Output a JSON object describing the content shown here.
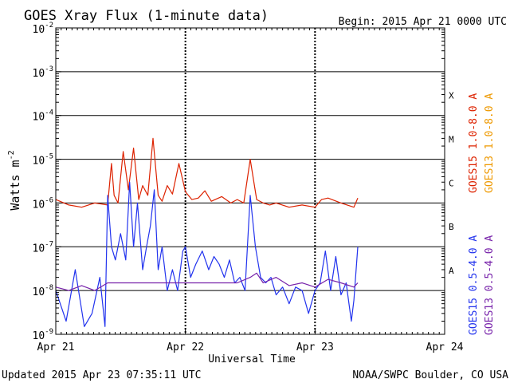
{
  "chart_data": {
    "type": "line",
    "title": "GOES Xray Flux (1-minute data)",
    "begin_label": "Begin:  2015 Apr 21 0000 UTC",
    "xlabel": "Universal Time",
    "ylabel": "Watts m",
    "ylabel_superscript": "-2",
    "x_ticks": [
      "Apr 21",
      "Apr 22",
      "Apr 23",
      "Apr 24"
    ],
    "y_scale": "log",
    "ylim": [
      1e-09,
      0.01
    ],
    "y_ticks": [
      {
        "base": "10",
        "exp": "-9",
        "value": 1e-09
      },
      {
        "base": "10",
        "exp": "-8",
        "value": 1e-08
      },
      {
        "base": "10",
        "exp": "-7",
        "value": 1e-07
      },
      {
        "base": "10",
        "exp": "-6",
        "value": 1e-06
      },
      {
        "base": "10",
        "exp": "-5",
        "value": 1e-05
      },
      {
        "base": "10",
        "exp": "-4",
        "value": 0.0001
      },
      {
        "base": "10",
        "exp": "-3",
        "value": 0.001
      },
      {
        "base": "10",
        "exp": "-2",
        "value": 0.01
      }
    ],
    "flare_classes": [
      {
        "label": "A",
        "value": 3e-08
      },
      {
        "label": "B",
        "value": 3e-07
      },
      {
        "label": "C",
        "value": 3e-06
      },
      {
        "label": "M",
        "value": 3e-05
      },
      {
        "label": "X",
        "value": 0.0003
      }
    ],
    "legend": [
      {
        "label": "GOES15 1.0-8.0 A",
        "color": "#dd2200"
      },
      {
        "label": "GOES13 1.0-8.0 A",
        "color": "#ee9900"
      },
      {
        "label": "GOES15 0.5-4.0 A",
        "color": "#2233ee"
      },
      {
        "label": "GOES13 0.5-4.0 A",
        "color": "#7722aa"
      }
    ],
    "series": [
      {
        "name": "GOES15 1.0-8.0 A",
        "color": "#dd2200",
        "x_days": [
          0.0,
          0.1,
          0.2,
          0.3,
          0.4,
          0.43,
          0.45,
          0.48,
          0.52,
          0.56,
          0.6,
          0.64,
          0.67,
          0.71,
          0.75,
          0.79,
          0.82,
          0.86,
          0.9,
          0.95,
          1.0,
          1.05,
          1.1,
          1.15,
          1.2,
          1.28,
          1.35,
          1.4,
          1.45,
          1.5,
          1.55,
          1.6,
          1.65,
          1.7,
          1.8,
          1.9,
          2.0,
          2.05,
          2.1,
          2.2,
          2.3,
          2.33
        ],
        "y": [
          1.2e-06,
          9e-07,
          8e-07,
          1e-06,
          9e-07,
          8e-06,
          1.5e-06,
          1e-06,
          1.5e-05,
          2e-06,
          1.8e-05,
          1.2e-06,
          2.5e-06,
          1.5e-06,
          3e-05,
          1.5e-06,
          1.1e-06,
          2.5e-06,
          1.6e-06,
          8e-06,
          1.8e-06,
          1.2e-06,
          1.3e-06,
          1.9e-06,
          1.1e-06,
          1.4e-06,
          1e-06,
          1.2e-06,
          1e-06,
          1e-05,
          1.2e-06,
          1e-06,
          9e-07,
          1e-06,
          8e-07,
          9e-07,
          8e-07,
          1.2e-06,
          1.3e-06,
          1e-06,
          8e-07,
          1.3e-06
        ]
      },
      {
        "name": "GOES15 0.5-4.0 A",
        "color": "#2233ee",
        "x_days": [
          0.0,
          0.08,
          0.15,
          0.22,
          0.28,
          0.34,
          0.38,
          0.4,
          0.43,
          0.46,
          0.5,
          0.54,
          0.57,
          0.6,
          0.63,
          0.67,
          0.7,
          0.73,
          0.76,
          0.79,
          0.82,
          0.86,
          0.9,
          0.94,
          0.98,
          1.0,
          1.04,
          1.08,
          1.13,
          1.18,
          1.22,
          1.26,
          1.3,
          1.34,
          1.38,
          1.42,
          1.46,
          1.5,
          1.54,
          1.58,
          1.62,
          1.66,
          1.7,
          1.75,
          1.8,
          1.85,
          1.9,
          1.95,
          2.0,
          2.04,
          2.08,
          2.12,
          2.16,
          2.2,
          2.24,
          2.28,
          2.3,
          2.33
        ],
        "y": [
          1e-08,
          2e-09,
          3e-08,
          1.5e-09,
          3e-09,
          2e-08,
          1.5e-09,
          1.5e-06,
          1e-07,
          5e-08,
          2e-07,
          5e-08,
          3e-06,
          1e-07,
          1e-06,
          3e-08,
          1e-07,
          3e-07,
          2e-06,
          3e-08,
          1e-07,
          1e-08,
          3e-08,
          1e-08,
          8e-08,
          1e-07,
          2e-08,
          4e-08,
          8e-08,
          3e-08,
          6e-08,
          4e-08,
          2e-08,
          5e-08,
          1.5e-08,
          2e-08,
          1e-08,
          1.5e-06,
          1e-07,
          2e-08,
          1.5e-08,
          2e-08,
          8e-09,
          1.2e-08,
          5e-09,
          1.2e-08,
          1e-08,
          3e-09,
          1e-08,
          1.5e-08,
          8e-08,
          1e-08,
          6e-08,
          8e-09,
          1.5e-08,
          2e-09,
          6e-09,
          1e-07
        ]
      },
      {
        "name": "GOES13 0.5-4.0 A",
        "color": "#7722aa",
        "x_days": [
          0.0,
          0.1,
          0.2,
          0.3,
          0.4,
          1.4,
          1.5,
          1.55,
          1.6,
          1.7,
          1.8,
          1.9,
          2.0,
          2.1,
          2.2,
          2.3,
          2.33
        ],
        "y": [
          1.2e-08,
          1e-08,
          1.3e-08,
          1e-08,
          1.5e-08,
          1.5e-08,
          2e-08,
          2.5e-08,
          1.5e-08,
          2e-08,
          1.3e-08,
          1.5e-08,
          1.2e-08,
          1.8e-08,
          1.5e-08,
          1.2e-08,
          1.5e-08
        ]
      }
    ]
  },
  "footer": {
    "updated": "Updated 2015 Apr 23 07:35:11 UTC",
    "credit": "NOAA/SWPC Boulder, CO USA"
  }
}
